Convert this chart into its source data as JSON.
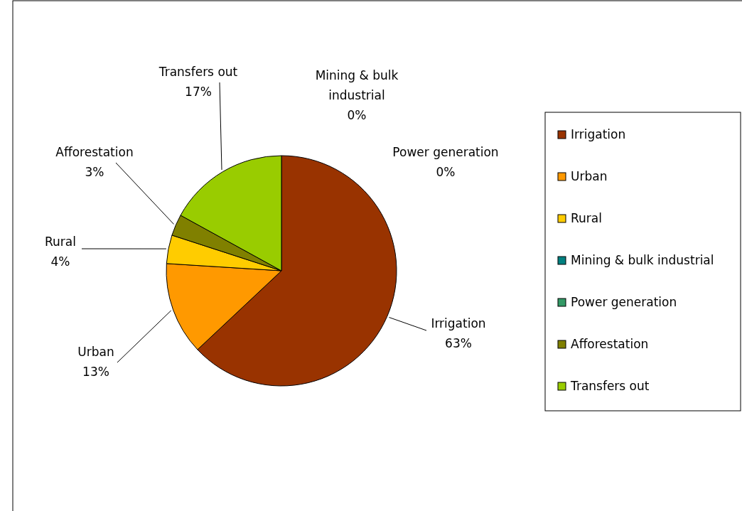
{
  "chart_data": {
    "type": "pie",
    "categories": [
      "Irrigation",
      "Urban",
      "Rural",
      "Mining & bulk industrial",
      "Power generation",
      "Afforestation",
      "Transfers out"
    ],
    "values": [
      63,
      13,
      4,
      0,
      0,
      3,
      17
    ],
    "value_labels": [
      "63%",
      "13%",
      "4%",
      "0%",
      "0%",
      "3%",
      "17%"
    ],
    "colors": [
      "#993300",
      "#ff9900",
      "#ffcc00",
      "#008080",
      "#339966",
      "#808000",
      "#99cc00"
    ],
    "legend": "right"
  }
}
